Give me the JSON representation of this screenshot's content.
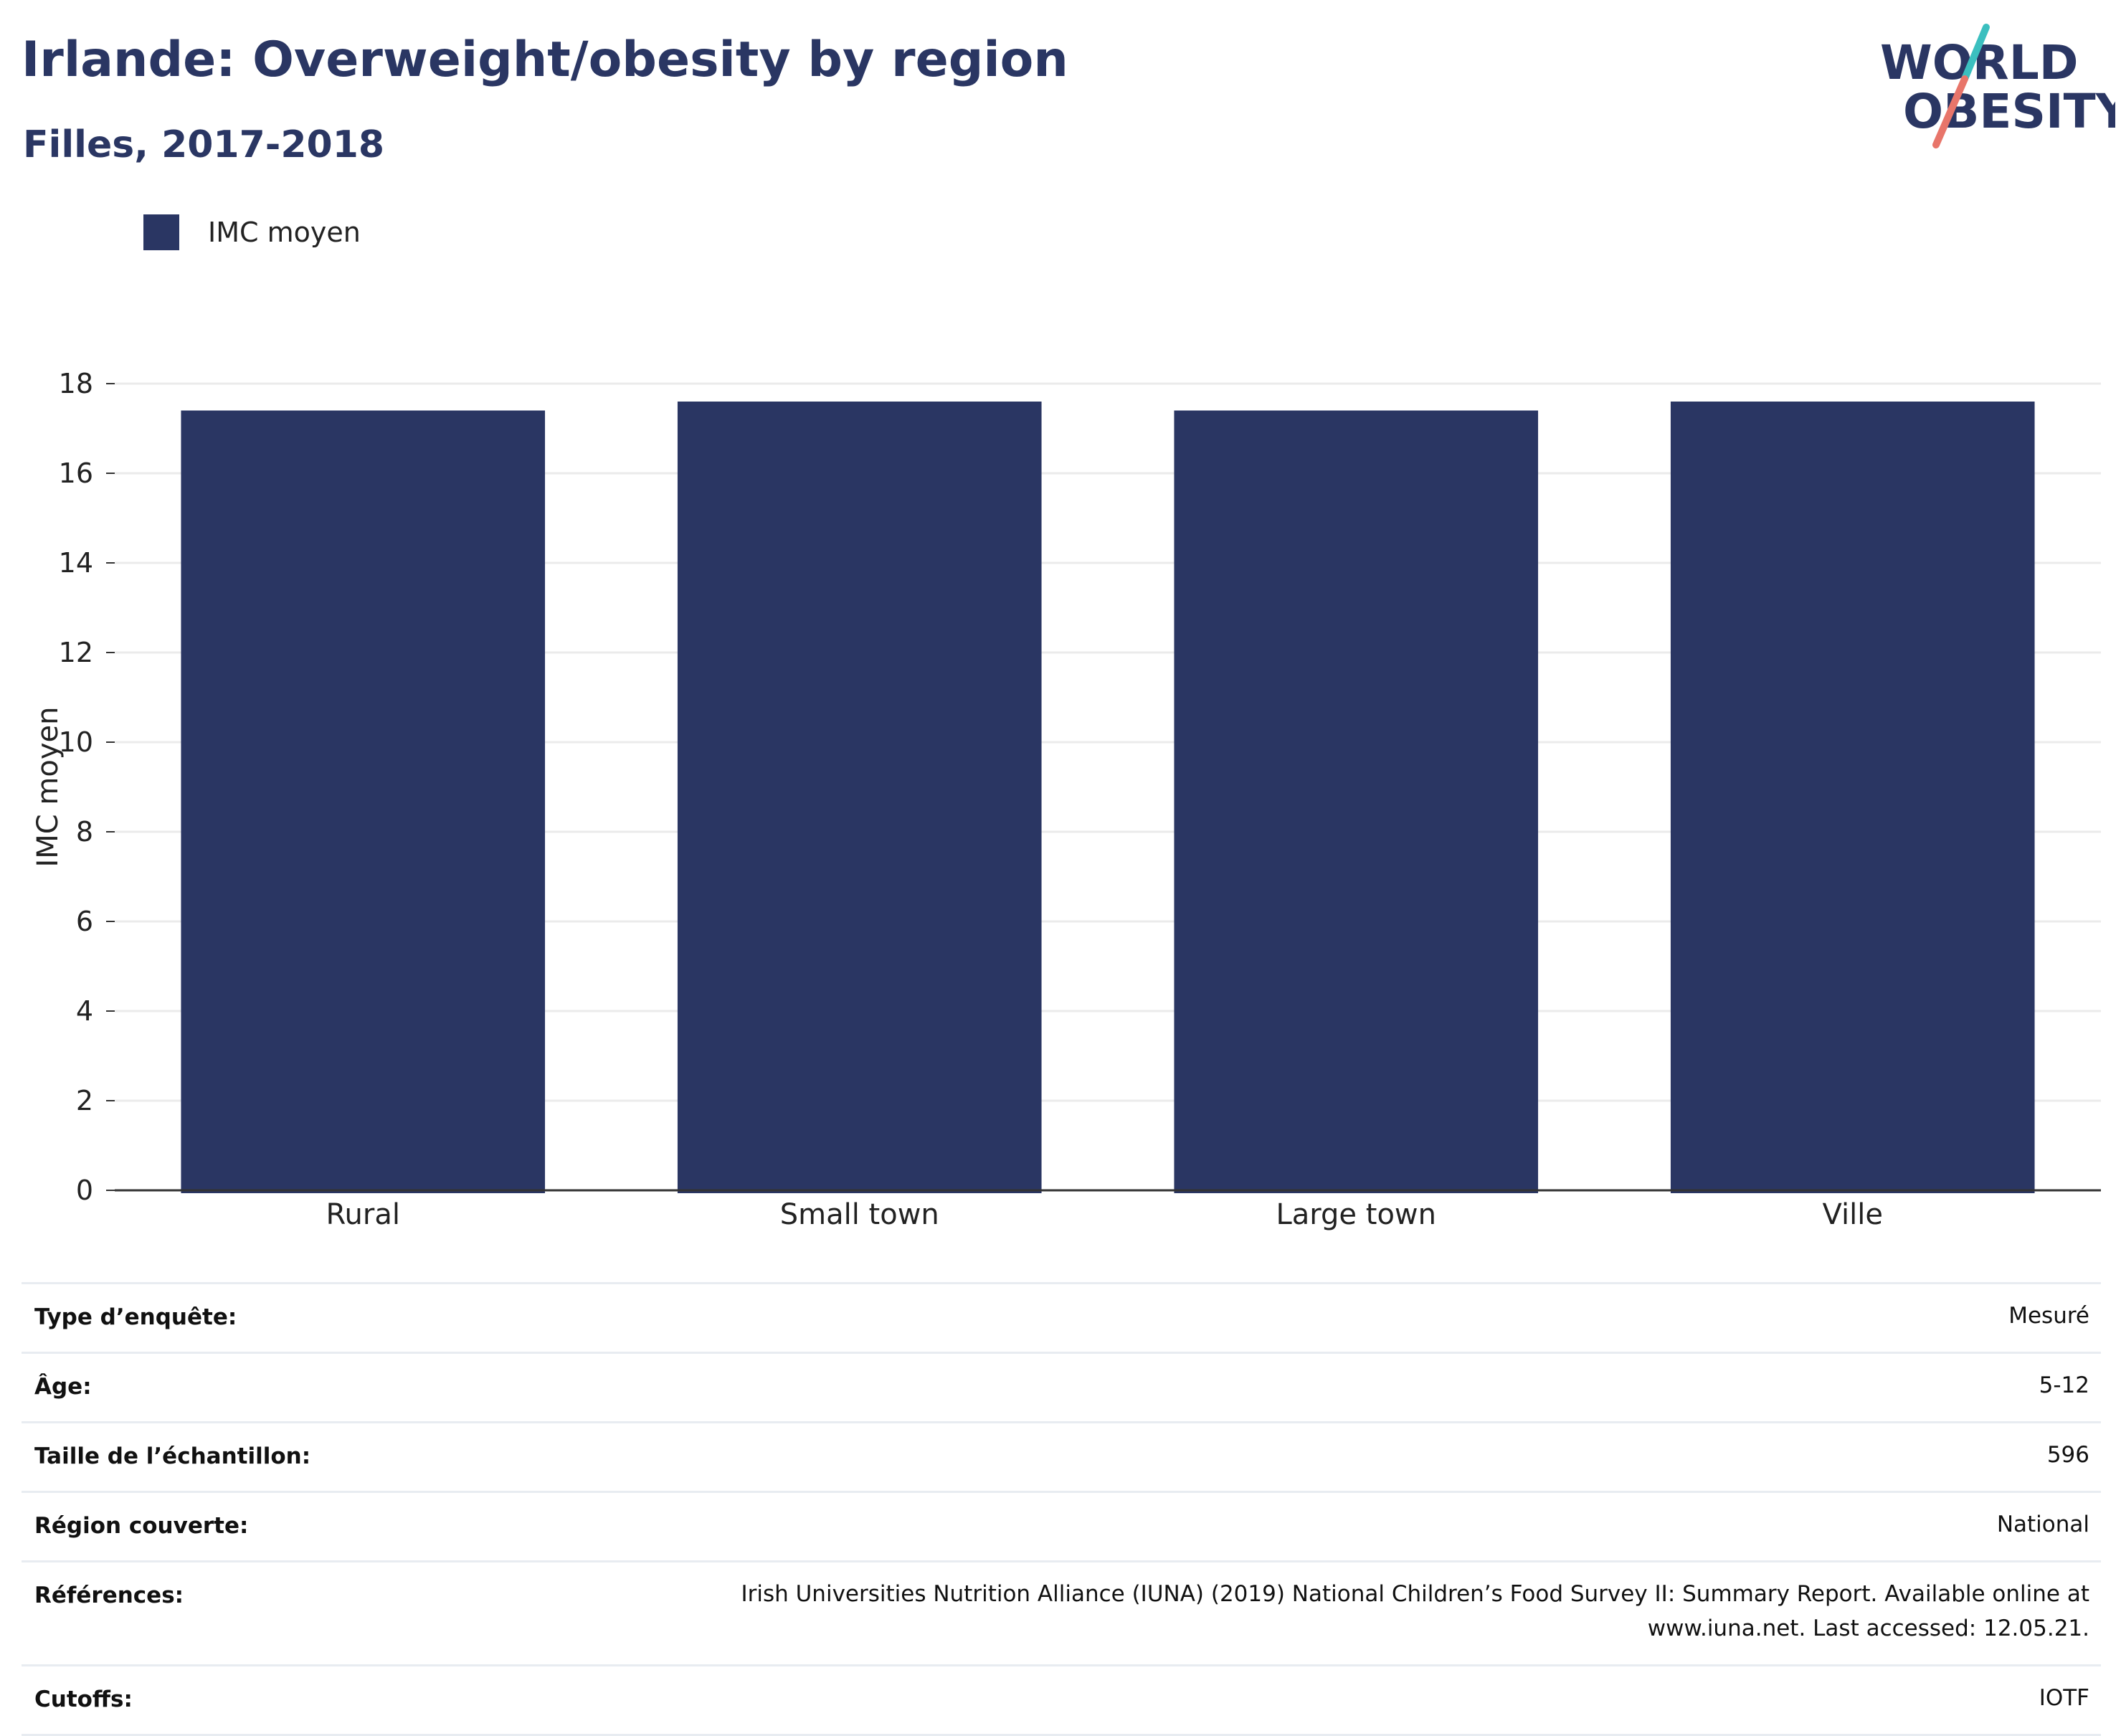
{
  "header": {
    "title": "Irlande: Overweight/obesity by region",
    "subtitle": "Filles, 2017-2018"
  },
  "logo": {
    "line1": "WORLD",
    "line2": "OBESITY",
    "slash_colors": [
      "#3bbfbf",
      "#e8756a"
    ]
  },
  "colors": {
    "bar": "#2a3663",
    "title": "#2a3663",
    "grid": "#ebebeb",
    "axis": "#333333"
  },
  "chart_data": {
    "type": "bar",
    "categories": [
      "Rural",
      "Small town",
      "Large town",
      "Ville"
    ],
    "series": [
      {
        "name": "IMC moyen",
        "values": [
          17.4,
          17.6,
          17.4,
          17.6
        ]
      }
    ],
    "ylabel": "IMC moyen",
    "xlabel": "",
    "ylim": [
      0,
      18
    ],
    "yticks": [
      0,
      2,
      4,
      6,
      8,
      10,
      12,
      14,
      16,
      18
    ],
    "grid": true,
    "legend_position": "top-left"
  },
  "meta": [
    {
      "label": "Type d’enquête:",
      "value": "Mesuré"
    },
    {
      "label": "Âge:",
      "value": "5-12"
    },
    {
      "label": "Taille de l’échantillon:",
      "value": "596"
    },
    {
      "label": "Région couverte:",
      "value": "National"
    },
    {
      "label": "Références:",
      "value": "Irish Universities Nutrition Alliance (IUNA) (2019) National Children’s Food Survey II: Summary Report. Available online at www.iuna.net. Last accessed: 12.05.21."
    },
    {
      "label": "Cutoffs:",
      "value": "IOTF"
    }
  ]
}
